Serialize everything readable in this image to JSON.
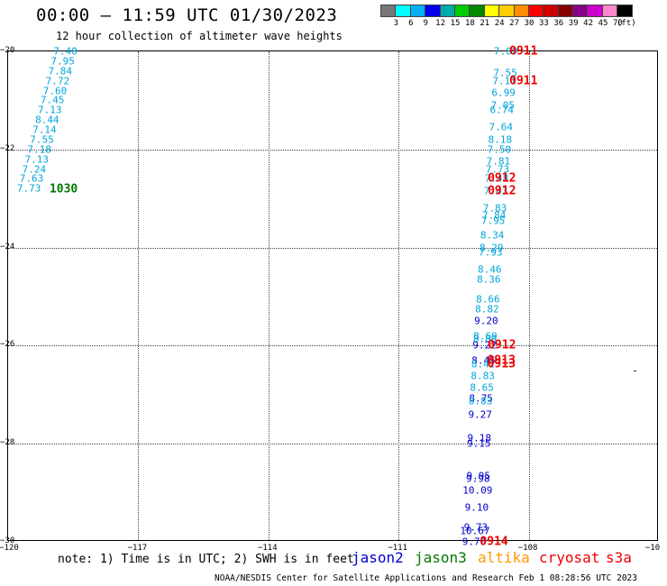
{
  "title": "00:00 – 11:59 UTC 01/30/2023",
  "subtitle": "12 hour collection of altimeter wave heights",
  "scale": {
    "unit": "(ft)",
    "colors": [
      "#777777",
      "#00ffff",
      "#00b0f0",
      "#0000ee",
      "#00aaaa",
      "#00cc00",
      "#008800",
      "#ffff00",
      "#ffcc00",
      "#ff8c00",
      "#ff0000",
      "#cc0000",
      "#880000",
      "#880088",
      "#cc00cc",
      "#ff88cc",
      "#000000"
    ],
    "labels": [
      "3",
      "6",
      "9",
      "12",
      "15",
      "18",
      "21",
      "24",
      "27",
      "30",
      "33",
      "36",
      "39",
      "42",
      "45",
      "70"
    ]
  },
  "axes": {
    "lon_ticks": [
      "−120",
      "−117",
      "−114",
      "−111",
      "−108",
      "−10"
    ],
    "lat_ticks": [
      "−20",
      "−22",
      "−24",
      "−26",
      "−28",
      "−30"
    ]
  },
  "colors": {
    "light_blue": "#00a5dc",
    "dark_blue": "#0000cc",
    "green": "#007700",
    "red": "#ee0000",
    "orange": "#ff9900",
    "text": "#000000"
  },
  "observations": [
    {
      "v": "7.40",
      "lon": -118.68,
      "lat": -20.0,
      "c": "light_blue"
    },
    {
      "v": "7.95",
      "lon": -118.74,
      "lat": -20.2,
      "c": "light_blue"
    },
    {
      "v": "7.84",
      "lon": -118.8,
      "lat": -20.4,
      "c": "light_blue"
    },
    {
      "v": "7.72",
      "lon": -118.86,
      "lat": -20.6,
      "c": "light_blue"
    },
    {
      "v": "7.60",
      "lon": -118.92,
      "lat": -20.8,
      "c": "light_blue"
    },
    {
      "v": "7.45",
      "lon": -118.98,
      "lat": -21.0,
      "c": "light_blue"
    },
    {
      "v": "7.13",
      "lon": -119.04,
      "lat": -21.2,
      "c": "light_blue"
    },
    {
      "v": "8.44",
      "lon": -119.1,
      "lat": -21.4,
      "c": "light_blue"
    },
    {
      "v": "7.14",
      "lon": -119.16,
      "lat": -21.6,
      "c": "light_blue"
    },
    {
      "v": "7.55",
      "lon": -119.22,
      "lat": -21.8,
      "c": "light_blue"
    },
    {
      "v": "7.18",
      "lon": -119.28,
      "lat": -22.0,
      "c": "light_blue"
    },
    {
      "v": "7.13",
      "lon": -119.34,
      "lat": -22.2,
      "c": "light_blue"
    },
    {
      "v": "7.24",
      "lon": -119.4,
      "lat": -22.4,
      "c": "light_blue"
    },
    {
      "v": "7.63",
      "lon": -119.46,
      "lat": -22.6,
      "c": "light_blue"
    },
    {
      "v": "7.73",
      "lon": -119.52,
      "lat": -22.8,
      "c": "light_blue"
    },
    {
      "v": "7.09",
      "lon": -108.53,
      "lat": -20.0,
      "c": "light_blue"
    },
    {
      "v": "7.55",
      "lon": -108.54,
      "lat": -20.45,
      "c": "light_blue"
    },
    {
      "v": "7.11",
      "lon": -108.56,
      "lat": -20.6,
      "c": "light_blue"
    },
    {
      "v": "6.99",
      "lon": -108.58,
      "lat": -20.85,
      "c": "light_blue"
    },
    {
      "v": "7.05",
      "lon": -108.6,
      "lat": -21.1,
      "c": "light_blue"
    },
    {
      "v": "6.74",
      "lon": -108.62,
      "lat": -21.2,
      "c": "light_blue"
    },
    {
      "v": "7.64",
      "lon": -108.64,
      "lat": -21.55,
      "c": "light_blue"
    },
    {
      "v": "8.18",
      "lon": -108.66,
      "lat": -21.8,
      "c": "light_blue"
    },
    {
      "v": "7.50",
      "lon": -108.68,
      "lat": -22.0,
      "c": "light_blue"
    },
    {
      "v": "7.81",
      "lon": -108.7,
      "lat": -22.25,
      "c": "light_blue"
    },
    {
      "v": "7.73",
      "lon": -108.72,
      "lat": -22.4,
      "c": "light_blue"
    },
    {
      "v": "7.48",
      "lon": -108.74,
      "lat": -22.6,
      "c": "light_blue"
    },
    {
      "v": "7.43",
      "lon": -108.76,
      "lat": -22.85,
      "c": "light_blue"
    },
    {
      "v": "7.83",
      "lon": -108.78,
      "lat": -23.2,
      "c": "light_blue"
    },
    {
      "v": "7.84",
      "lon": -108.8,
      "lat": -23.35,
      "c": "light_blue"
    },
    {
      "v": "7.95",
      "lon": -108.82,
      "lat": -23.45,
      "c": "light_blue"
    },
    {
      "v": "8.34",
      "lon": -108.84,
      "lat": -23.75,
      "c": "light_blue"
    },
    {
      "v": "8.29",
      "lon": -108.86,
      "lat": -24.0,
      "c": "light_blue"
    },
    {
      "v": "7.93",
      "lon": -108.88,
      "lat": -24.1,
      "c": "light_blue"
    },
    {
      "v": "8.46",
      "lon": -108.9,
      "lat": -24.45,
      "c": "light_blue"
    },
    {
      "v": "8.36",
      "lon": -108.92,
      "lat": -24.65,
      "c": "light_blue"
    },
    {
      "v": "8.66",
      "lon": -108.94,
      "lat": -25.05,
      "c": "light_blue"
    },
    {
      "v": "8.82",
      "lon": -108.96,
      "lat": -25.25,
      "c": "light_blue"
    },
    {
      "v": "9.20",
      "lon": -108.98,
      "lat": -25.5,
      "c": "dark_blue"
    },
    {
      "v": "8.69",
      "lon": -109.0,
      "lat": -25.8,
      "c": "light_blue"
    },
    {
      "v": "8.80",
      "lon": -109.01,
      "lat": -25.87,
      "c": "light_blue"
    },
    {
      "v": "9.22",
      "lon": -109.02,
      "lat": -26.0,
      "c": "dark_blue"
    },
    {
      "v": "8.45",
      "lon": -109.04,
      "lat": -26.3,
      "c": "dark_blue"
    },
    {
      "v": "8.42",
      "lon": -109.05,
      "lat": -26.38,
      "c": "light_blue"
    },
    {
      "v": "8.83",
      "lon": -109.06,
      "lat": -26.62,
      "c": "light_blue"
    },
    {
      "v": "8.65",
      "lon": -109.08,
      "lat": -26.85,
      "c": "light_blue"
    },
    {
      "v": "8.75",
      "lon": -109.1,
      "lat": -27.08,
      "c": "dark_blue"
    },
    {
      "v": "8.83",
      "lon": -109.11,
      "lat": -27.14,
      "c": "light_blue"
    },
    {
      "v": "9.27",
      "lon": -109.12,
      "lat": -27.4,
      "c": "dark_blue"
    },
    {
      "v": "9.18",
      "lon": -109.14,
      "lat": -27.88,
      "c": "dark_blue"
    },
    {
      "v": "9.15",
      "lon": -109.15,
      "lat": -28.0,
      "c": "dark_blue"
    },
    {
      "v": "9.95",
      "lon": -109.16,
      "lat": -28.65,
      "c": "dark_blue"
    },
    {
      "v": "9.98",
      "lon": -109.17,
      "lat": -28.72,
      "c": "dark_blue"
    },
    {
      "v": "10.09",
      "lon": -109.18,
      "lat": -28.95,
      "c": "dark_blue"
    },
    {
      "v": "9.10",
      "lon": -109.2,
      "lat": -29.3,
      "c": "dark_blue"
    },
    {
      "v": "9.73",
      "lon": -109.22,
      "lat": -29.7,
      "c": "dark_blue"
    },
    {
      "v": "10.67",
      "lon": -109.24,
      "lat": -29.78,
      "c": "dark_blue"
    },
    {
      "v": "9.70",
      "lon": -109.26,
      "lat": -30.0,
      "c": "dark_blue"
    }
  ],
  "pass_times": [
    {
      "t": "0911",
      "lon": -108.12,
      "lat": -20.0,
      "c": "red"
    },
    {
      "t": "0911",
      "lon": -108.12,
      "lat": -20.6,
      "c": "red"
    },
    {
      "t": "1030",
      "lon": -118.72,
      "lat": -22.82,
      "c": "green"
    },
    {
      "t": "0912",
      "lon": -108.62,
      "lat": -22.6,
      "c": "red"
    },
    {
      "t": "0912",
      "lon": -108.62,
      "lat": -22.85,
      "c": "red"
    },
    {
      "t": "0912",
      "lon": -108.62,
      "lat": -26.0,
      "c": "red"
    },
    {
      "t": "0913",
      "lon": -108.63,
      "lat": -26.3,
      "c": "red"
    },
    {
      "t": "0913",
      "lon": -108.63,
      "lat": -26.38,
      "c": "red"
    },
    {
      "t": "0914",
      "lon": -108.8,
      "lat": -30.0,
      "c": "red"
    }
  ],
  "markers": [
    {
      "lon": -105.55,
      "lat": -26.5,
      "symbol": "-"
    }
  ],
  "note": "note: 1) Time is in UTC; 2) SWH is in feet",
  "legend": [
    {
      "label": "jason2",
      "c": "dark_blue"
    },
    {
      "label": "jason3",
      "c": "green"
    },
    {
      "label": "altika",
      "c": "orange"
    },
    {
      "label": "cryosat",
      "c": "red"
    },
    {
      "label": "s3a",
      "c": "red"
    }
  ],
  "credit": "NOAA/NESDIS Center for Satellite Applications and Research   Feb  1 08:28:56 UTC 2023"
}
